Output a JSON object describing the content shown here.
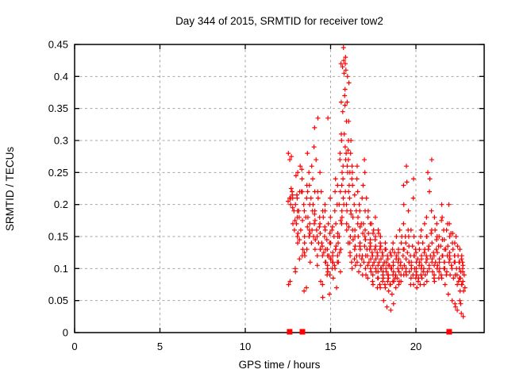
{
  "title": "Day 344 of 2015, SRMTID for receiver tow2",
  "chart_data": {
    "type": "scatter",
    "title": "Day 344 of 2015, SRMTID for receiver tow2",
    "xlabel": "GPS time / hours",
    "ylabel": "SRMTID / TECUs",
    "xlim": [
      0,
      24
    ],
    "ylim": [
      0,
      0.45
    ],
    "xticks": [
      0,
      5,
      10,
      15,
      20
    ],
    "xtick_labels": [
      "0",
      "5",
      "10",
      "15",
      "20"
    ],
    "yticks": [
      0,
      0.05,
      0.1,
      0.15,
      0.2,
      0.25,
      0.3,
      0.35,
      0.4,
      0.45
    ],
    "ytick_labels": [
      "0",
      "0.05",
      "0.1",
      "0.15",
      "0.2",
      "0.25",
      "0.3",
      "0.35",
      "0.4",
      "0.45"
    ],
    "grid": true,
    "legend_position": "none",
    "marker": "plus",
    "marker_color": "#ff0000",
    "grid_color": "#a6a6a6",
    "border_color": "#000000",
    "series": [
      {
        "name": "SRMTID",
        "columns": [
          [
            12.6,
            [
              0.205,
              0.21,
              0.225,
              0.28,
              0.075,
              0.08
            ]
          ],
          [
            12.7,
            [
              0.2,
              0.195,
              0.21,
              0.215,
              0.22,
              0.27,
              0.275
            ]
          ],
          [
            12.85,
            [
              0.19,
              0.2,
              0.21,
              0.17,
              0.16
            ]
          ],
          [
            13.0,
            [
              0.25,
              0.245,
              0.19,
              0.18,
              0.175,
              0.17,
              0.155,
              0.1,
              0.095
            ]
          ],
          [
            13.1,
            [
              0.22,
              0.215,
              0.21,
              0.19,
              0.15,
              0.145,
              0.14
            ]
          ],
          [
            13.25,
            [
              0.26,
              0.255,
              0.22,
              0.18,
              0.16,
              0.12,
              0.115
            ]
          ],
          [
            13.4,
            [
              0.24,
              0.22,
              0.2,
              0.175,
              0.15,
              0.13,
              0.125,
              0.065
            ]
          ],
          [
            13.55,
            [
              0.23,
              0.21,
              0.19,
              0.18,
              0.165,
              0.14,
              0.12,
              0.07
            ]
          ],
          [
            13.7,
            [
              0.28,
              0.25,
              0.22,
              0.2,
              0.18,
              0.16,
              0.15,
              0.13
            ]
          ],
          [
            13.85,
            [
              0.26,
              0.23,
              0.21,
              0.19,
              0.17,
              0.155,
              0.14,
              0.11
            ]
          ],
          [
            14.0,
            [
              0.29,
              0.24,
              0.22,
              0.2,
              0.185,
              0.17,
              0.16,
              0.15,
              0.13
            ]
          ],
          [
            14.15,
            [
              0.32,
              0.27,
              0.22,
              0.19,
              0.175,
              0.16,
              0.145,
              0.12
            ]
          ],
          [
            14.3,
            [
              0.335,
              0.25,
              0.21,
              0.18,
              0.165,
              0.15,
              0.14,
              0.13,
              0.105
            ]
          ],
          [
            14.45,
            [
              0.22,
              0.19,
              0.17,
              0.155,
              0.14,
              0.13,
              0.12,
              0.08
            ]
          ],
          [
            14.6,
            [
              0.2,
              0.18,
              0.165,
              0.15,
              0.135,
              0.125,
              0.11,
              0.075,
              0.055
            ]
          ],
          [
            14.75,
            [
              0.335,
              0.19,
              0.16,
              0.145,
              0.13,
              0.12,
              0.11,
              0.1,
              0.09
            ]
          ],
          [
            14.9,
            [
              0.17,
              0.155,
              0.14,
              0.13,
              0.12,
              0.115,
              0.105,
              0.095,
              0.06
            ]
          ],
          [
            15.05,
            [
              0.21,
              0.18,
              0.16,
              0.14,
              0.125,
              0.115,
              0.11,
              0.1,
              0.09
            ]
          ],
          [
            15.2,
            [
              0.22,
              0.19,
              0.165,
              0.15,
              0.13,
              0.12,
              0.11,
              0.105,
              0.085
            ]
          ],
          [
            15.35,
            [
              0.24,
              0.2,
              0.17,
              0.15,
              0.135,
              0.12,
              0.11,
              0.1,
              0.07
            ]
          ],
          [
            15.5,
            [
              0.27,
              0.23,
              0.2,
              0.175,
              0.155,
              0.14,
              0.125,
              0.11,
              0.095
            ]
          ],
          [
            15.6,
            [
              0.31,
              0.28,
              0.25,
              0.22,
              0.19,
              0.17,
              0.15,
              0.13
            ]
          ],
          [
            15.7,
            [
              0.42,
              0.415,
              0.405,
              0.36,
              0.3,
              0.26,
              0.23,
              0.2,
              0.18
            ]
          ],
          [
            15.8,
            [
              0.445,
              0.43,
              0.425,
              0.42,
              0.38,
              0.345,
              0.31,
              0.27,
              0.24,
              0.21
            ]
          ],
          [
            15.9,
            [
              0.41,
              0.4,
              0.37,
              0.355,
              0.33,
              0.29,
              0.26,
              0.22,
              0.19,
              0.16
            ]
          ],
          [
            16.0,
            [
              0.39,
              0.36,
              0.33,
              0.3,
              0.28,
              0.25,
              0.23,
              0.2,
              0.17,
              0.14
            ]
          ],
          [
            16.1,
            [
              0.3,
              0.285,
              0.27,
              0.25,
              0.22,
              0.19,
              0.165,
              0.15,
              0.12
            ]
          ],
          [
            16.2,
            [
              0.28,
              0.26,
              0.24,
              0.21,
              0.185,
              0.16,
              0.14,
              0.125,
              0.11
            ]
          ],
          [
            16.35,
            [
              0.25,
              0.23,
              0.2,
              0.18,
              0.16,
              0.145,
              0.13,
              0.115,
              0.1
            ]
          ],
          [
            16.5,
            [
              0.26,
              0.24,
              0.215,
              0.19,
              0.17,
              0.15,
              0.135,
              0.12,
              0.105
            ]
          ],
          [
            16.65,
            [
              0.22,
              0.2,
              0.18,
              0.165,
              0.15,
              0.135,
              0.12,
              0.11,
              0.095
            ]
          ],
          [
            16.8,
            [
              0.21,
              0.19,
              0.17,
              0.155,
              0.14,
              0.13,
              0.115,
              0.105,
              0.09
            ]
          ],
          [
            16.95,
            [
              0.27,
              0.23,
              0.19,
              0.17,
              0.15,
              0.135,
              0.12,
              0.11,
              0.1
            ]
          ],
          [
            17.1,
            [
              0.25,
              0.21,
              0.18,
              0.16,
              0.145,
              0.13,
              0.12,
              0.105,
              0.09
            ]
          ],
          [
            17.25,
            [
              0.19,
              0.17,
              0.155,
              0.14,
              0.13,
              0.12,
              0.11,
              0.1,
              0.085
            ]
          ],
          [
            17.4,
            [
              0.17,
              0.155,
              0.145,
              0.135,
              0.125,
              0.115,
              0.105,
              0.095,
              0.08
            ]
          ],
          [
            17.55,
            [
              0.18,
              0.16,
              0.145,
              0.13,
              0.12,
              0.11,
              0.1,
              0.09,
              0.075
            ]
          ],
          [
            17.7,
            [
              0.16,
              0.15,
              0.135,
              0.125,
              0.115,
              0.105,
              0.095,
              0.085,
              0.07
            ]
          ],
          [
            17.85,
            [
              0.155,
              0.14,
              0.13,
              0.12,
              0.11,
              0.1,
              0.095,
              0.085,
              0.075
            ]
          ],
          [
            18.0,
            [
              0.15,
              0.135,
              0.125,
              0.115,
              0.105,
              0.1,
              0.09,
              0.08,
              0.07
            ]
          ],
          [
            18.15,
            [
              0.14,
              0.13,
              0.12,
              0.11,
              0.1,
              0.095,
              0.085,
              0.075,
              0.05
            ]
          ],
          [
            18.3,
            [
              0.13,
              0.12,
              0.11,
              0.105,
              0.095,
              0.09,
              0.08,
              0.07,
              0.04
            ]
          ],
          [
            18.45,
            [
              0.125,
              0.115,
              0.105,
              0.1,
              0.09,
              0.085,
              0.075,
              0.065,
              0.035
            ]
          ],
          [
            18.6,
            [
              0.13,
              0.12,
              0.11,
              0.1,
              0.09,
              0.08,
              0.075,
              0.06,
              0.045
            ]
          ],
          [
            18.75,
            [
              0.14,
              0.125,
              0.115,
              0.105,
              0.095,
              0.085,
              0.08,
              0.07
            ]
          ],
          [
            18.9,
            [
              0.15,
              0.13,
              0.12,
              0.11,
              0.1,
              0.09,
              0.085,
              0.075
            ]
          ],
          [
            19.05,
            [
              0.16,
              0.14,
              0.125,
              0.115,
              0.105,
              0.095,
              0.09,
              0.08
            ]
          ],
          [
            19.2,
            [
              0.17,
              0.15,
              0.13,
              0.12,
              0.11,
              0.1,
              0.09,
              0.08
            ]
          ],
          [
            19.35,
            [
              0.26,
              0.23,
              0.2,
              0.15,
              0.13,
              0.115,
              0.105,
              0.095
            ]
          ],
          [
            19.5,
            [
              0.235,
              0.19,
              0.16,
              0.14,
              0.125,
              0.11,
              0.1,
              0.09
            ]
          ],
          [
            19.65,
            [
              0.15,
              0.135,
              0.12,
              0.11,
              0.105,
              0.095,
              0.085,
              0.075
            ]
          ],
          [
            19.8,
            [
              0.24,
              0.21,
              0.16,
              0.135,
              0.12,
              0.11,
              0.1,
              0.09
            ]
          ],
          [
            19.95,
            [
              0.15,
              0.13,
              0.12,
              0.11,
              0.1,
              0.095,
              0.085,
              0.075
            ]
          ],
          [
            20.1,
            [
              0.14,
              0.125,
              0.115,
              0.105,
              0.1,
              0.09,
              0.08,
              0.07
            ]
          ],
          [
            20.25,
            [
              0.15,
              0.13,
              0.12,
              0.11,
              0.1,
              0.09,
              0.085,
              0.075
            ]
          ],
          [
            20.4,
            [
              0.16,
              0.14,
              0.125,
              0.115,
              0.105,
              0.095,
              0.085,
              0.075
            ]
          ],
          [
            20.55,
            [
              0.17,
              0.15,
              0.13,
              0.12,
              0.11,
              0.1,
              0.09,
              0.08
            ]
          ],
          [
            20.7,
            [
              0.25,
              0.22,
              0.18,
              0.15,
              0.13,
              0.115,
              0.105,
              0.095
            ]
          ],
          [
            20.85,
            [
              0.27,
              0.24,
              0.19,
              0.155,
              0.135,
              0.12,
              0.11,
              0.1
            ]
          ],
          [
            21.0,
            [
              0.18,
              0.16,
              0.14,
              0.125,
              0.115,
              0.105,
              0.095,
              0.085
            ]
          ],
          [
            21.15,
            [
              0.16,
              0.145,
              0.13,
              0.12,
              0.11,
              0.1,
              0.09,
              0.08
            ]
          ],
          [
            21.3,
            [
              0.17,
              0.15,
              0.135,
              0.125,
              0.115,
              0.105,
              0.095,
              0.085
            ]
          ],
          [
            21.45,
            [
              0.2,
              0.175,
              0.15,
              0.135,
              0.12,
              0.11,
              0.1,
              0.09
            ]
          ],
          [
            21.6,
            [
              0.18,
              0.16,
              0.145,
              0.13,
              0.12,
              0.11,
              0.1,
              0.085
            ]
          ],
          [
            21.75,
            [
              0.16,
              0.145,
              0.13,
              0.12,
              0.11,
              0.1,
              0.09,
              0.075
            ]
          ],
          [
            21.9,
            [
              0.2,
              0.17,
              0.15,
              0.135,
              0.12,
              0.11,
              0.095,
              0.06
            ]
          ],
          [
            22.05,
            [
              0.17,
              0.155,
              0.14,
              0.125,
              0.115,
              0.105,
              0.09,
              0.05
            ]
          ],
          [
            22.2,
            [
              0.155,
              0.14,
              0.13,
              0.12,
              0.11,
              0.1,
              0.085,
              0.045
            ]
          ],
          [
            22.35,
            [
              0.15,
              0.135,
              0.12,
              0.11,
              0.1,
              0.09,
              0.075,
              0.04
            ]
          ],
          [
            22.5,
            [
              0.13,
              0.12,
              0.11,
              0.1,
              0.09,
              0.08,
              0.065,
              0.035
            ]
          ],
          [
            22.6,
            [
              0.12,
              0.11,
              0.1,
              0.095,
              0.085,
              0.075,
              0.05,
              0.03
            ]
          ],
          [
            22.7,
            [
              0.115,
              0.105,
              0.095,
              0.085,
              0.075,
              0.065,
              0.045
            ]
          ],
          [
            22.8,
            [
              0.11,
              0.1,
              0.09,
              0.08,
              0.07,
              0.025
            ]
          ]
        ],
        "zero_value_points_x": [
          12.6,
          13.35,
          21.95
        ]
      }
    ]
  }
}
